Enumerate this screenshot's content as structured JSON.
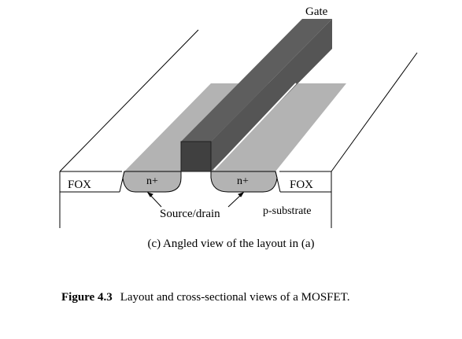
{
  "labels": {
    "gate": "Gate",
    "fox_left": "FOX",
    "fox_right": "FOX",
    "n_plus_left": "n+",
    "n_plus_right": "n+",
    "source_drain": "Source/drain",
    "substrate": "p-substrate"
  },
  "subcaption": "(c) Angled view of the layout in (a)",
  "caption": {
    "number": "Figure 4.3",
    "text": "Layout and cross-sectional views of a MOSFET."
  },
  "colors": {
    "diffusion": "#b3b3b3",
    "gate_front": "#404040",
    "gate_side": "#555555",
    "gate_top": "#5e5e5e",
    "outline": "#000000"
  }
}
